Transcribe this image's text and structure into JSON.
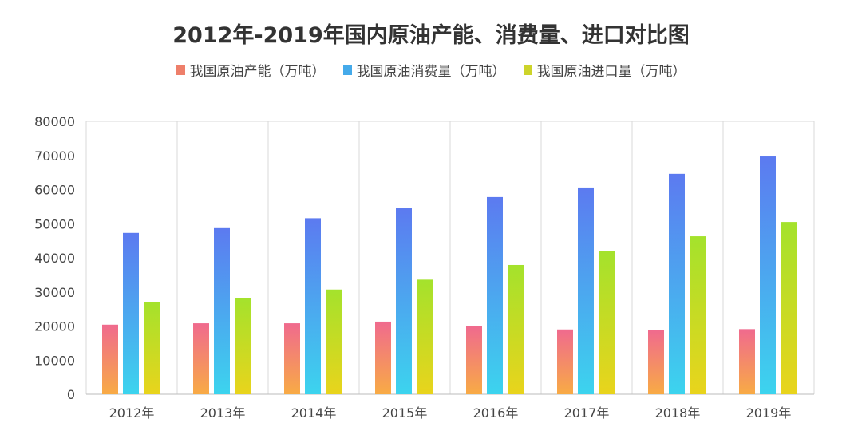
{
  "chart_data": {
    "type": "bar",
    "title": "2012年-2019年国内原油产能、消费量、进口对比图",
    "categories": [
      "2012年",
      "2013年",
      "2014年",
      "2015年",
      "2016年",
      "2017年",
      "2018年",
      "2019年"
    ],
    "series": [
      {
        "name": "我国原油产能（万吨）",
        "values": [
          20400,
          20800,
          20800,
          21300,
          19900,
          19000,
          18800,
          19100
        ],
        "colors": [
          "#f06a8e",
          "#f8ab45"
        ]
      },
      {
        "name": "我国原油消费量（万吨）",
        "values": [
          47300,
          48700,
          51600,
          54500,
          57800,
          60600,
          64600,
          69700
        ],
        "colors": [
          "#5c7af0",
          "#3cd4ee"
        ]
      },
      {
        "name": "我国原油进口量（万吨）",
        "values": [
          27000,
          28100,
          30700,
          33600,
          37900,
          41900,
          46300,
          50500
        ],
        "colors": [
          "#a4e22c",
          "#e9d41c"
        ]
      }
    ],
    "yticks": [
      "0",
      "10000",
      "20000",
      "30000",
      "40000",
      "50000",
      "60000",
      "70000",
      "80000"
    ],
    "ylim": [
      0,
      80000
    ],
    "grid": "vertical category separators",
    "legend": "top-center"
  }
}
